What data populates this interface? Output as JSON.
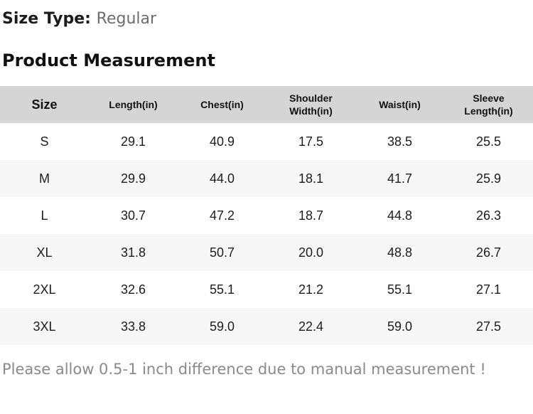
{
  "header": {
    "size_type_label": "Size Type:",
    "size_type_value": "Regular",
    "section_title": "Product Measurement"
  },
  "table": {
    "columns": [
      "Size",
      "Length(in)",
      "Chest(in)",
      "Shoulder Width(in)",
      "Waist(in)",
      "Sleeve Length(in)"
    ],
    "rows": [
      [
        "S",
        "29.1",
        "40.9",
        "17.5",
        "38.5",
        "25.5"
      ],
      [
        "M",
        "29.9",
        "44.0",
        "18.1",
        "41.7",
        "25.9"
      ],
      [
        "L",
        "30.7",
        "47.2",
        "18.7",
        "44.8",
        "26.3"
      ],
      [
        "XL",
        "31.8",
        "50.7",
        "20.0",
        "48.8",
        "26.7"
      ],
      [
        "2XL",
        "32.6",
        "55.1",
        "21.2",
        "55.1",
        "27.1"
      ],
      [
        "3XL",
        "33.8",
        "59.0",
        "22.4",
        "59.0",
        "27.5"
      ]
    ]
  },
  "note": {
    "text": "Please allow 0.5-1 inch difference due to manual measurement !"
  },
  "colors": {
    "header_bg": "#d5d5d5",
    "alt_row_bg": "#f7f7f7",
    "muted_text": "#6d6d6d",
    "note_text": "#8a8a8a",
    "text": "#1b1b1b"
  }
}
